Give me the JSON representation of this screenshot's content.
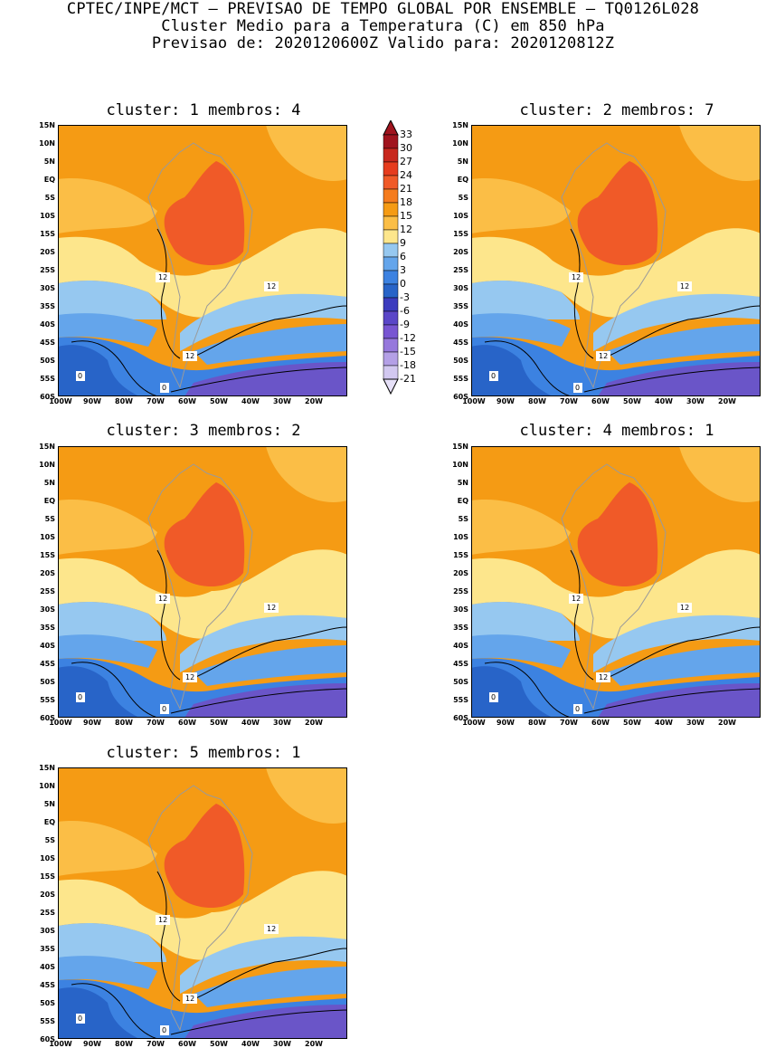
{
  "header": {
    "line1": "CPTEC/INPE/MCT – PREVISAO DE TEMPO GLOBAL POR ENSEMBLE – TQ0126L028",
    "line2": "Cluster Medio para a Temperatura (C) em 850 hPa",
    "line3": "Previsao de: 2020120600Z   Valido para: 2020120812Z"
  },
  "panels": [
    {
      "title": "cluster: 1   membros: 4"
    },
    {
      "title": "cluster: 2   membros: 7"
    },
    {
      "title": "cluster: 3   membros: 2"
    },
    {
      "title": "cluster: 4   membros: 1"
    },
    {
      "title": "cluster: 5   membros: 1"
    }
  ],
  "lat_labels": [
    "15N",
    "10N",
    "5N",
    "EQ",
    "5S",
    "10S",
    "15S",
    "20S",
    "25S",
    "30S",
    "35S",
    "40S",
    "45S",
    "50S",
    "55S",
    "60S"
  ],
  "lon_labels": [
    "100W",
    "90W",
    "80W",
    "70W",
    "60W",
    "50W",
    "40W",
    "30W",
    "20W"
  ],
  "contour_labels": {
    "twelve": "12",
    "zero": "0"
  },
  "colorbar": {
    "labels": [
      "33",
      "30",
      "27",
      "24",
      "21",
      "18",
      "15",
      "12",
      "9",
      "6",
      "3",
      "0",
      "-3",
      "-6",
      "-9",
      "-12",
      "-15",
      "-18",
      "-21"
    ],
    "colors": [
      "#a0141e",
      "#c8281e",
      "#e63c1e",
      "#f05a28",
      "#f57c1e",
      "#f59b14",
      "#fbbe46",
      "#fde68c",
      "#96c8f0",
      "#64a5eb",
      "#3c82e1",
      "#2864c8",
      "#3c3cbe",
      "#5a46c8",
      "#7855d2",
      "#9678dc",
      "#b4a0e6",
      "#d2c8f0"
    ]
  },
  "colors": {
    "warm_orange": "#f59b14",
    "light_orange": "#fbbe46",
    "red_core": "#f05a28",
    "pale_yellow": "#fde68c",
    "light_blue": "#96c8f0",
    "mid_blue": "#64a5eb",
    "blue": "#3c82e1",
    "dark_blue": "#2864c8",
    "purple": "#6a55c8",
    "land_border": "#9a9a9a"
  }
}
